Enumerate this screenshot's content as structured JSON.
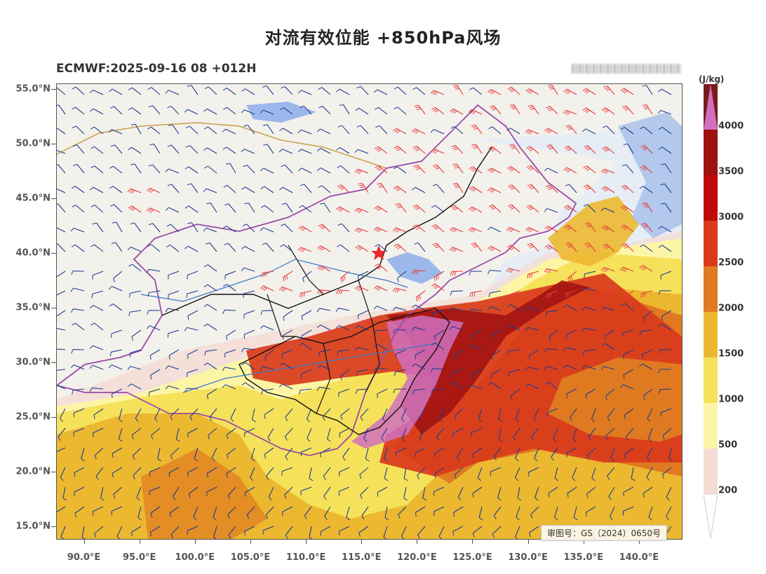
{
  "title": "对流有效位能 +850hPa风场",
  "subtitle": "ECMWF:2025-09-16 08 +012H",
  "approval_number": "审图号：GS（2024）0650号",
  "map": {
    "lat_labels": [
      "55.0°N",
      "50.0°N",
      "45.0°N",
      "40.0°N",
      "35.0°N",
      "30.0°N",
      "25.0°N",
      "20.0°N",
      "15.0°N"
    ],
    "lon_labels": [
      "90.0°E",
      "95.0°E",
      "100.0°E",
      "105.0°E",
      "110.0°E",
      "115.0°E",
      "120.0°E",
      "125.0°E",
      "130.0°E",
      "135.0°E",
      "140.0°E"
    ],
    "lon_range": [
      87.5,
      143.8
    ],
    "lat_range": [
      13.9,
      55.5
    ],
    "location_marker": "red-star",
    "barb_colors": {
      "normal": "#1a3d8f",
      "strong": "#e83a3a"
    }
  },
  "colorbar": {
    "unit": "(J/kg)",
    "labels": [
      "4000",
      "3500",
      "3000",
      "2500",
      "2000",
      "1500",
      "1000",
      "500",
      "200"
    ],
    "colors": [
      "#f4dcd5",
      "#fdf5a6",
      "#f6e15a",
      "#ecb830",
      "#e07a20",
      "#d93a1c",
      "#c00a0a",
      "#a01010",
      "#7a1a1a",
      "#d070c0"
    ]
  }
}
